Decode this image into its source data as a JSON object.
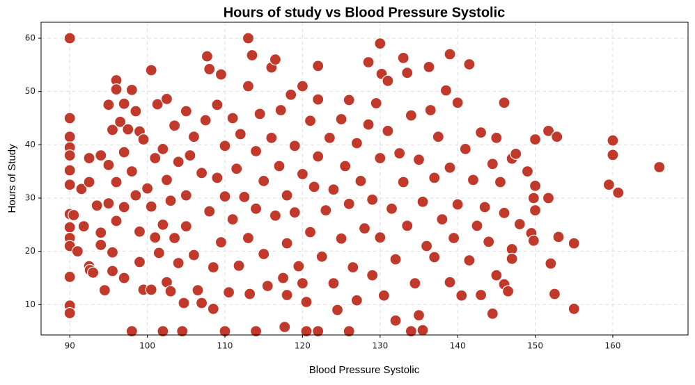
{
  "chart_data": {
    "type": "scatter",
    "title": "Hours of study vs Blood Pressure Systolic",
    "x_label": "Blood Pressure Systolic",
    "y_label": "Hours of Study",
    "color": "#c0392b",
    "grid": true,
    "xlim": [
      86.3,
      169.7
    ],
    "ylim": [
      4.3,
      63
    ],
    "xticks": [
      90,
      100,
      110,
      120,
      130,
      140,
      150,
      160
    ],
    "yticks": [
      10,
      20,
      30,
      40,
      50,
      60
    ],
    "x": [
      90,
      90,
      90,
      90,
      90,
      90,
      90,
      90,
      90,
      90,
      90,
      90,
      90,
      90,
      90.5,
      91,
      91.5,
      91.8,
      92.5,
      92.5,
      92.5,
      92.6,
      93,
      93.5,
      94,
      94,
      94,
      94.5,
      95,
      95,
      95,
      95.5,
      95.5,
      95.5,
      96,
      96,
      96,
      96,
      96.5,
      97,
      97,
      97,
      97,
      97.5,
      98,
      98,
      98,
      98.5,
      98.5,
      99,
      99,
      99,
      99.5,
      99.5,
      100,
      100.5,
      100.5,
      100.5,
      101,
      101,
      101.3,
      101.5,
      102,
      102,
      102,
      102.5,
      102.5,
      102.5,
      103,
      103,
      103.5,
      103.5,
      104,
      104,
      104.5,
      104.7,
      105,
      105,
      105,
      105.5,
      106,
      106,
      106.5,
      107,
      107,
      107.5,
      107.7,
      108,
      108,
      108.5,
      108.5,
      109,
      109,
      109.5,
      109.5,
      110,
      110,
      110,
      110.5,
      111,
      111,
      111.5,
      111.8,
      112,
      112.5,
      113,
      113,
      113,
      113.2,
      113.5,
      114,
      114,
      114,
      114.5,
      115,
      115,
      115.5,
      116,
      116.5,
      116,
      116.5,
      117,
      117.2,
      117.7,
      117.5,
      118,
      118,
      118.5,
      118,
      119,
      119,
      119.5,
      120,
      120,
      120,
      120.5,
      120.5,
      121,
      121,
      121.5,
      122,
      122,
      122,
      122,
      122.5,
      123,
      123.5,
      124,
      124,
      124.5,
      125,
      125,
      125.5,
      126,
      126,
      126,
      126.5,
      127,
      127,
      127.5,
      128,
      128.5,
      128.5,
      129,
      129,
      129.5,
      130,
      130,
      130,
      130.2,
      130.5,
      131,
      131,
      131.5,
      132,
      132,
      132.5,
      133,
      133.5,
      133,
      133.5,
      134,
      134,
      134.5,
      135,
      135,
      135.5,
      135.5,
      136,
      136.5,
      136.3,
      137,
      137,
      137.5,
      138,
      138.5,
      139,
      139,
      139,
      139.5,
      140,
      140,
      140.5,
      141,
      141.5,
      141.5,
      142,
      142.5,
      143,
      143,
      143.5,
      144,
      144.5,
      144.5,
      145,
      145,
      145.5,
      146,
      146,
      146,
      146.5,
      147,
      147,
      147.5,
      147,
      148,
      149,
      149.5,
      149.8,
      149.8,
      150,
      150,
      150,
      151.7,
      151.7,
      152,
      152.8,
      152.5,
      153,
      155,
      155,
      159.5,
      160,
      160,
      160.7,
      166
    ],
    "values": [
      60,
      45,
      41.5,
      39.5,
      38,
      35.2,
      32.5,
      27,
      24.5,
      22.5,
      21,
      15.2,
      9.8,
      8.4,
      26.8,
      20,
      31.7,
      24.7,
      37.5,
      33,
      17.2,
      16.5,
      16,
      28.6,
      38,
      21.2,
      23.5,
      12.7,
      29,
      47.5,
      36.2,
      42.8,
      19.8,
      16.3,
      52.1,
      50.4,
      33,
      25.7,
      44.3,
      47.7,
      38.6,
      28.3,
      15,
      42.9,
      50.3,
      35,
      5,
      46.3,
      30.5,
      42.5,
      23.7,
      18,
      12.8,
      41,
      31.8,
      54,
      28.4,
      12.8,
      37.5,
      22.6,
      47.6,
      19.7,
      5,
      39.2,
      25,
      48.6,
      33.4,
      14.2,
      29.5,
      12.5,
      43.6,
      22.5,
      36.8,
      17.8,
      5,
      10.3,
      46.3,
      30.5,
      24.7,
      38,
      41.5,
      19.3,
      12.7,
      10.3,
      34.7,
      44.6,
      56.6,
      54.2,
      27.5,
      17,
      9.2,
      47.5,
      33.8,
      53.2,
      21.7,
      5,
      39.8,
      30.3,
      12.3,
      45,
      26,
      35.5,
      17.3,
      42,
      30.2,
      60,
      51,
      22.5,
      12,
      56.8,
      5,
      38.8,
      28,
      45.8,
      33.2,
      19.5,
      13.5,
      54.5,
      56,
      41.3,
      26.7,
      36,
      46.5,
      5.8,
      15,
      30.5,
      21.5,
      49.4,
      11.8,
      39.8,
      27.3,
      17.2,
      51,
      34.5,
      14,
      5,
      10.5,
      44.5,
      23.6,
      32.1,
      54.8,
      48.5,
      5,
      37.8,
      19,
      27.7,
      41.3,
      14,
      31.6,
      9,
      44.8,
      22.4,
      36,
      5,
      48.4,
      28.9,
      17,
      40.3,
      10.8,
      33.2,
      24.3,
      55.5,
      43.8,
      29.7,
      15.5,
      47.8,
      59,
      37.5,
      22.6,
      53.3,
      11.7,
      52,
      42.6,
      28,
      7,
      18.5,
      38.4,
      56.3,
      53.5,
      33,
      24.8,
      5,
      45.5,
      14,
      8,
      37.2,
      5.2,
      29.3,
      21,
      46.5,
      54.6,
      33.8,
      18.9,
      41.5,
      26,
      50.2,
      57,
      35.7,
      14.2,
      22.5,
      47.9,
      28.8,
      11.7,
      39.2,
      55.1,
      18.3,
      33.4,
      24.8,
      42.3,
      11.8,
      28.3,
      21.8,
      8.3,
      36.4,
      41.3,
      15.5,
      33,
      47.9,
      27.2,
      13.8,
      12.5,
      37.4,
      20.4,
      38.3,
      18.6,
      25.1,
      35,
      23.4,
      22,
      30,
      41,
      32.3,
      27.7,
      30,
      42.6,
      17.7,
      41.5,
      12,
      22.7,
      21.5,
      9.2,
      32.5,
      40.8,
      38.1,
      31,
      35.8
    ]
  }
}
